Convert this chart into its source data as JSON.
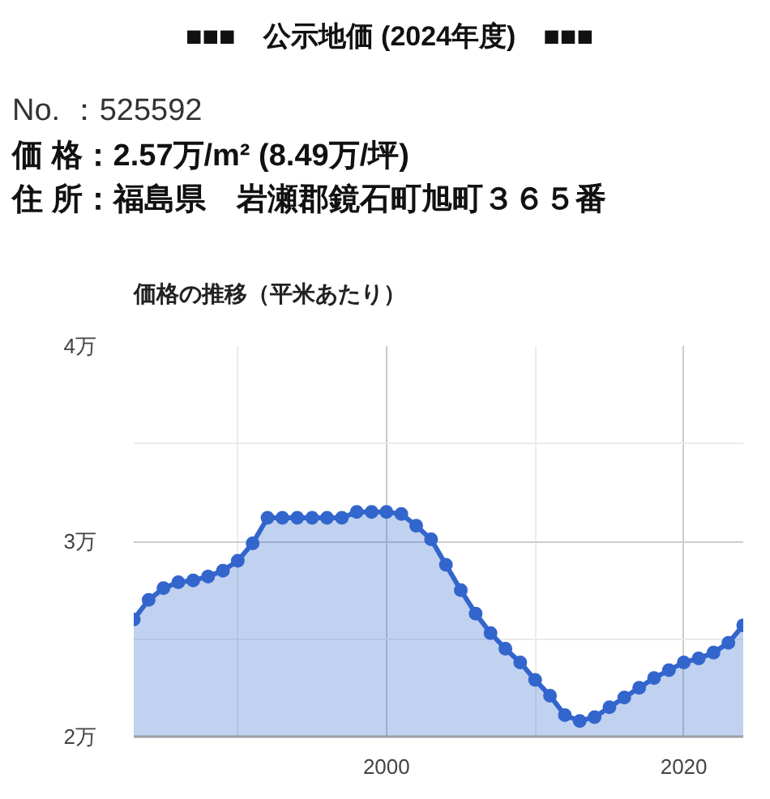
{
  "chart_data": {
    "type": "area",
    "title": "■■■　公示地価 (2024年度)　■■■",
    "annotations": [
      "No. ：525592",
      "価 格：2.57万/m² (8.49万/坪)",
      "住 所：福島県　岩瀬郡鏡石町旭町３６５番"
    ],
    "subtitle": "価格の推移（平米あたり）",
    "x": [
      1983,
      1984,
      1985,
      1986,
      1987,
      1988,
      1989,
      1990,
      1991,
      1992,
      1993,
      1994,
      1995,
      1996,
      1997,
      1998,
      1999,
      2000,
      2001,
      2002,
      2003,
      2004,
      2005,
      2006,
      2007,
      2008,
      2009,
      2010,
      2011,
      2012,
      2013,
      2014,
      2015,
      2016,
      2017,
      2018,
      2019,
      2020,
      2021,
      2022,
      2023,
      2024
    ],
    "series": [
      {
        "color": "#3366cc",
        "values": [
          2.6,
          2.7,
          2.76,
          2.79,
          2.8,
          2.82,
          2.85,
          2.9,
          2.99,
          3.12,
          3.12,
          3.12,
          3.12,
          3.12,
          3.12,
          3.15,
          3.15,
          3.15,
          3.14,
          3.08,
          3.01,
          2.88,
          2.75,
          2.63,
          2.53,
          2.45,
          2.38,
          2.29,
          2.21,
          2.11,
          2.08,
          2.1,
          2.15,
          2.2,
          2.25,
          2.3,
          2.34,
          2.38,
          2.4,
          2.43,
          2.48,
          2.57
        ]
      }
    ],
    "xlim": [
      1983,
      2024
    ],
    "xticks": [
      {
        "value": 1990,
        "label": null
      },
      2000,
      {
        "value": 2010,
        "label": null
      },
      2020
    ],
    "ylim": [
      2,
      4
    ],
    "yticks": [
      {
        "value": 2,
        "label": "2万"
      },
      {
        "value": 2.5,
        "label": null
      },
      {
        "value": 3,
        "label": "3万"
      },
      {
        "value": 3.5,
        "label": null
      },
      {
        "value": 4,
        "label": "4万"
      }
    ],
    "grid": true,
    "marker": "circle",
    "line_style": "solid"
  }
}
